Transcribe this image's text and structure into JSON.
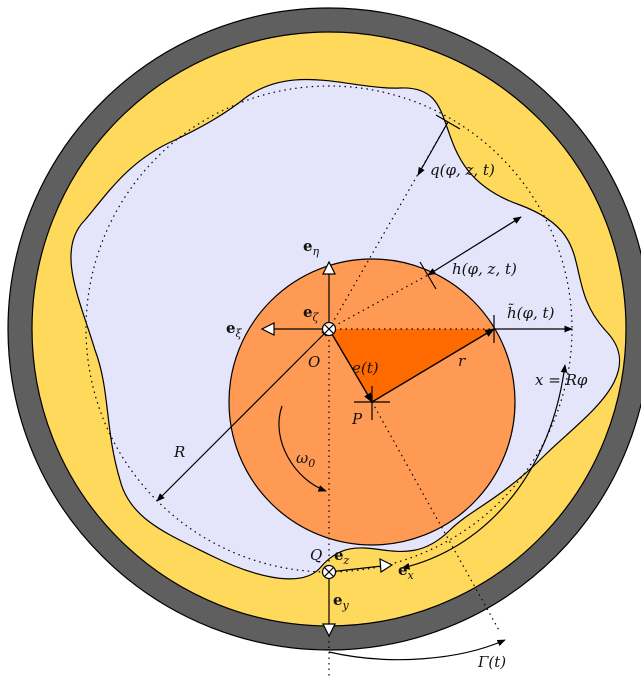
{
  "colors": {
    "outer_ring": "#5f5f5f",
    "gap_fill": "#ffd95c",
    "fluid_fill": "#e4e4fa",
    "rotor_fill": "#ff9a55",
    "triangle_fill": "#ff6a00",
    "line": "#000000"
  },
  "labels": {
    "q": "q(φ, z, t)",
    "h": "h(φ, z, t)",
    "h_tilde": "h̃(φ, t)",
    "e_t": "e(t)",
    "r": "r",
    "R": "R",
    "O": "O",
    "P": "P",
    "Q": "Q",
    "omega_base": "ω",
    "omega_sub": "0",
    "x_eq": "x = Rφ",
    "gamma": "Γ(t)",
    "e_base": "e",
    "e_eta_sub": "η",
    "e_zeta_sub": "ζ",
    "e_xi_sub": "ξ",
    "e_z_sub": "z",
    "e_x_sub": "x",
    "e_y_sub": "y"
  }
}
